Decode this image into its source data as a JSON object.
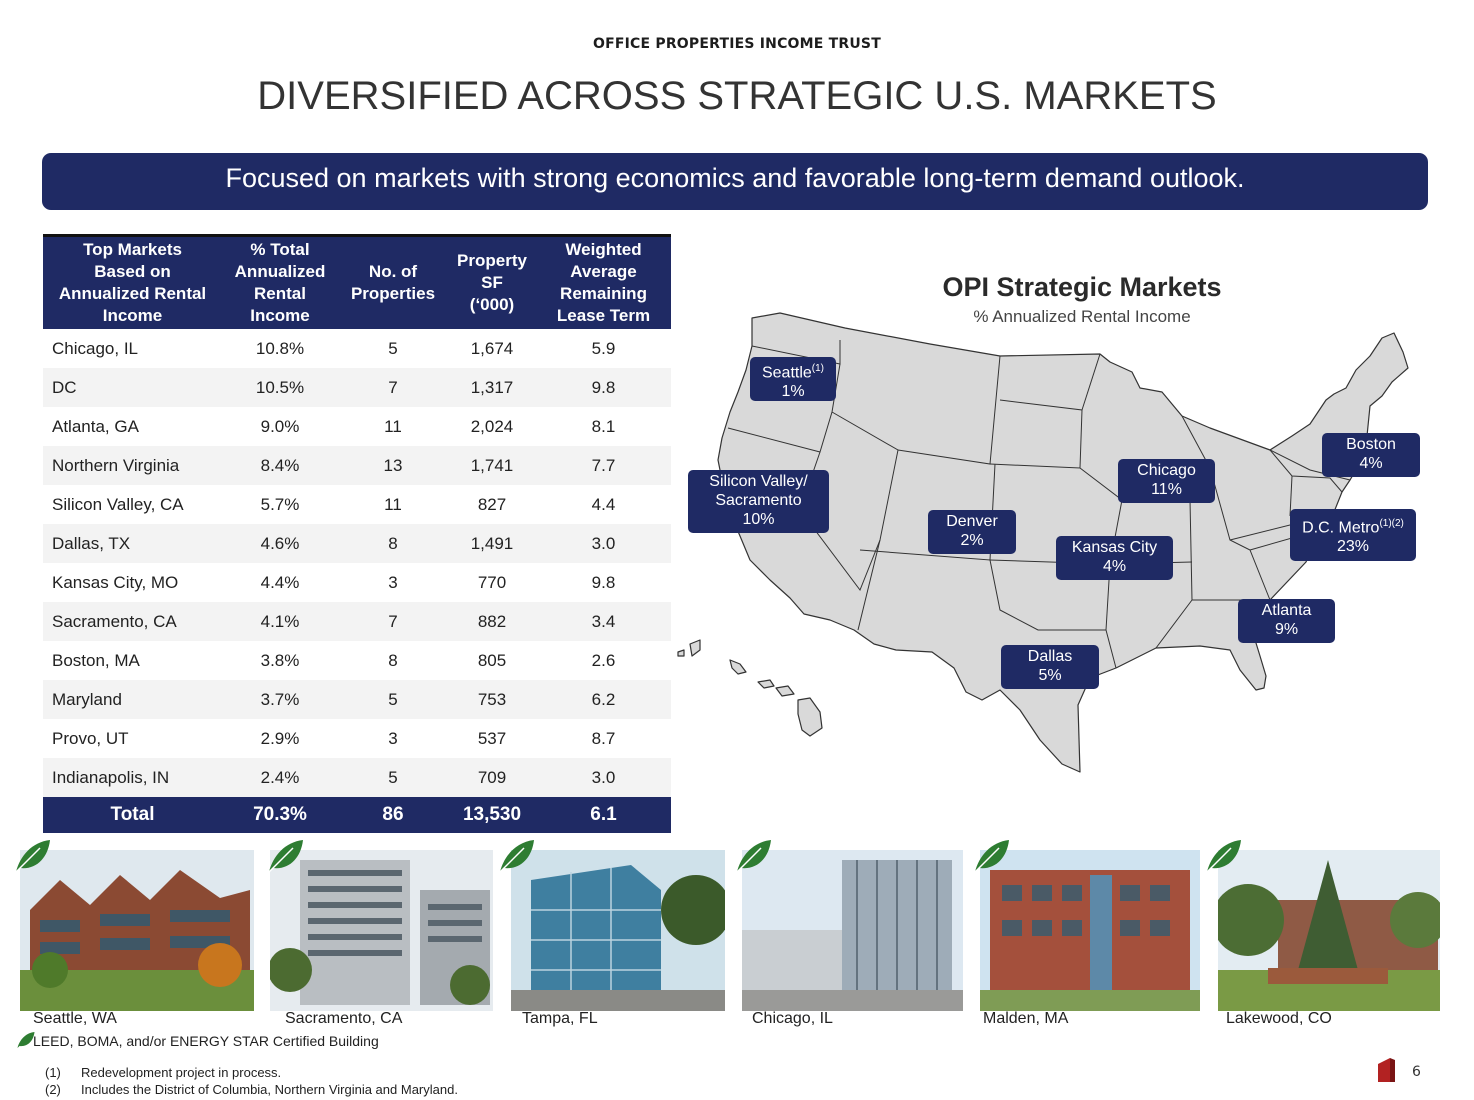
{
  "header": {
    "company": "OFFICE PROPERTIES INCOME TRUST",
    "title": "DIVERSIFIED ACROSS STRATEGIC U.S. MARKETS"
  },
  "banner": "Focused on markets with strong economics and favorable long-term demand outlook.",
  "table": {
    "headers": {
      "market": [
        "Top Markets",
        "Based on",
        "Annualized Rental",
        "Income"
      ],
      "pct": [
        "% Total",
        "Annualized",
        "Rental",
        "Income"
      ],
      "props": [
        "No. of",
        "Properties"
      ],
      "sf": [
        "Property",
        "SF",
        "(‘000)"
      ],
      "term": [
        "Weighted",
        "Average",
        "Remaining",
        "Lease Term"
      ]
    },
    "rows": [
      {
        "market": "Chicago, IL",
        "pct": "10.8%",
        "props": "5",
        "sf": "1,674",
        "term": "5.9"
      },
      {
        "market": "DC",
        "pct": "10.5%",
        "props": "7",
        "sf": "1,317",
        "term": "9.8"
      },
      {
        "market": "Atlanta, GA",
        "pct": "9.0%",
        "props": "11",
        "sf": "2,024",
        "term": "8.1"
      },
      {
        "market": "Northern Virginia",
        "pct": "8.4%",
        "props": "13",
        "sf": "1,741",
        "term": "7.7"
      },
      {
        "market": "Silicon Valley, CA",
        "pct": "5.7%",
        "props": "11",
        "sf": "827",
        "term": "4.4"
      },
      {
        "market": "Dallas, TX",
        "pct": "4.6%",
        "props": "8",
        "sf": "1,491",
        "term": "3.0"
      },
      {
        "market": "Kansas City, MO",
        "pct": "4.4%",
        "props": "3",
        "sf": "770",
        "term": "9.8"
      },
      {
        "market": "Sacramento, CA",
        "pct": "4.1%",
        "props": "7",
        "sf": "882",
        "term": "3.4"
      },
      {
        "market": "Boston, MA",
        "pct": "3.8%",
        "props": "8",
        "sf": "805",
        "term": "2.6"
      },
      {
        "market": "Maryland",
        "pct": "3.7%",
        "props": "5",
        "sf": "753",
        "term": "6.2"
      },
      {
        "market": "Provo, UT",
        "pct": "2.9%",
        "props": "3",
        "sf": "537",
        "term": "8.7"
      },
      {
        "market": "Indianapolis, IN",
        "pct": "2.4%",
        "props": "5",
        "sf": "709",
        "term": "3.0"
      }
    ],
    "total": {
      "market": "Total",
      "pct": "70.3%",
      "props": "86",
      "sf": "13,530",
      "term": "6.1"
    }
  },
  "map": {
    "title": "OPI Strategic Markets",
    "subtitle": "% Annualized Rental Income",
    "labels": {
      "seattle": {
        "name": "Seattle",
        "sup": "(1)",
        "pct": "1%"
      },
      "silicon": {
        "name1": "Silicon Valley/",
        "name2": "Sacramento",
        "pct": "10%"
      },
      "denver": {
        "name": "Denver",
        "pct": "2%"
      },
      "chicago": {
        "name": "Chicago",
        "pct": "11%"
      },
      "kansas": {
        "name": "Kansas City",
        "pct": "4%"
      },
      "boston": {
        "name": "Boston",
        "pct": "4%"
      },
      "dc": {
        "name": "D.C. Metro",
        "sup": "(1)(2)",
        "pct": "23%"
      },
      "atlanta": {
        "name": "Atlanta",
        "pct": "9%"
      },
      "dallas": {
        "name": "Dallas",
        "pct": "5%"
      }
    },
    "colors": {
      "state_fill": "#d9d9d9",
      "state_stroke": "#333333",
      "label_bg": "#1f2a64"
    }
  },
  "photos": [
    {
      "caption": "Seattle, WA"
    },
    {
      "caption": "Sacramento, CA"
    },
    {
      "caption": "Tampa, FL"
    },
    {
      "caption": "Chicago, IL"
    },
    {
      "caption": "Malden, MA"
    },
    {
      "caption": "Lakewood, CO"
    }
  ],
  "legend": "LEED, BOMA, and/or ENERGY STAR Certified Building",
  "footnotes": [
    {
      "num": "(1)",
      "text": "Redevelopment project in process."
    },
    {
      "num": "(2)",
      "text": "Includes the District of Columbia, Northern Virginia and Maryland."
    }
  ],
  "page_number": "6",
  "colors": {
    "navy": "#1f2a64",
    "leaf_green": "#2e7d32"
  }
}
